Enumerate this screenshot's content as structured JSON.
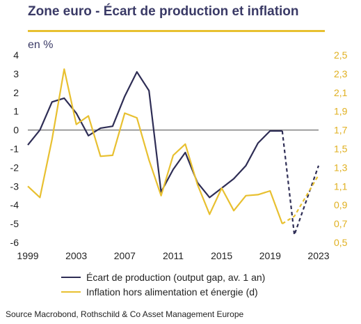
{
  "title": "Zone euro - Écart de production et inflation",
  "unit_label": "en %",
  "source": "Source Macrobond, Rothschild & Co Asset Management Europe",
  "colors": {
    "output_gap": "#2e2d55",
    "inflation": "#e8c030",
    "zero_line": "#808080"
  },
  "chart_data": {
    "type": "line",
    "x_ticks": [
      "1999",
      "2003",
      "2007",
      "2011",
      "2015",
      "2019",
      "2023"
    ],
    "xlim": [
      1999,
      2023
    ],
    "y_left": {
      "ticks": [
        "4",
        "3",
        "2",
        "1",
        "0",
        "-1",
        "-2",
        "-3",
        "-4",
        "-5",
        "-6"
      ],
      "ylim": [
        -6,
        4
      ]
    },
    "y_right": {
      "ticks": [
        "2,5",
        "2,3",
        "2,1",
        "1,9",
        "1,7",
        "1,5",
        "1,3",
        "1,1",
        "0,9",
        "0,7",
        "0,5"
      ],
      "ylim": [
        0.5,
        2.5
      ]
    },
    "zero_line": 0,
    "series": [
      {
        "name": "Écart de production (output gap, av. 1 an)",
        "axis": "left",
        "x": [
          1999,
          2000,
          2001,
          2002,
          2003,
          2004,
          2005,
          2006,
          2007,
          2008,
          2009,
          2010,
          2011,
          2012,
          2013,
          2014,
          2015,
          2016,
          2017,
          2018,
          2019,
          2020
        ],
        "y": [
          -0.8,
          0.0,
          1.5,
          1.7,
          0.9,
          -0.3,
          0.1,
          0.2,
          1.8,
          3.1,
          2.1,
          -3.3,
          -2.1,
          -1.2,
          -2.8,
          -3.6,
          -3.1,
          -2.6,
          -1.9,
          -0.7,
          -0.05,
          -0.05
        ],
        "projection": {
          "x": [
            2020,
            2021,
            2023
          ],
          "y": [
            -0.05,
            -5.6,
            -1.9
          ]
        }
      },
      {
        "name": "Inflation hors alimentation et énergie (d)",
        "axis": "right",
        "x": [
          1999,
          2000,
          2001,
          2002,
          2003,
          2004,
          2005,
          2006,
          2007,
          2008,
          2009,
          2010,
          2011,
          2012,
          2013,
          2014,
          2015,
          2016,
          2017,
          2018,
          2019,
          2020
        ],
        "y": [
          1.1,
          0.98,
          1.6,
          2.35,
          1.76,
          1.85,
          1.42,
          1.43,
          1.88,
          1.83,
          1.38,
          1.0,
          1.43,
          1.55,
          1.12,
          0.8,
          1.08,
          0.84,
          1.0,
          1.01,
          1.05,
          0.7
        ],
        "projection": {
          "x": [
            2020,
            2021,
            2023
          ],
          "y": [
            0.7,
            0.78,
            1.22
          ]
        }
      }
    ]
  }
}
